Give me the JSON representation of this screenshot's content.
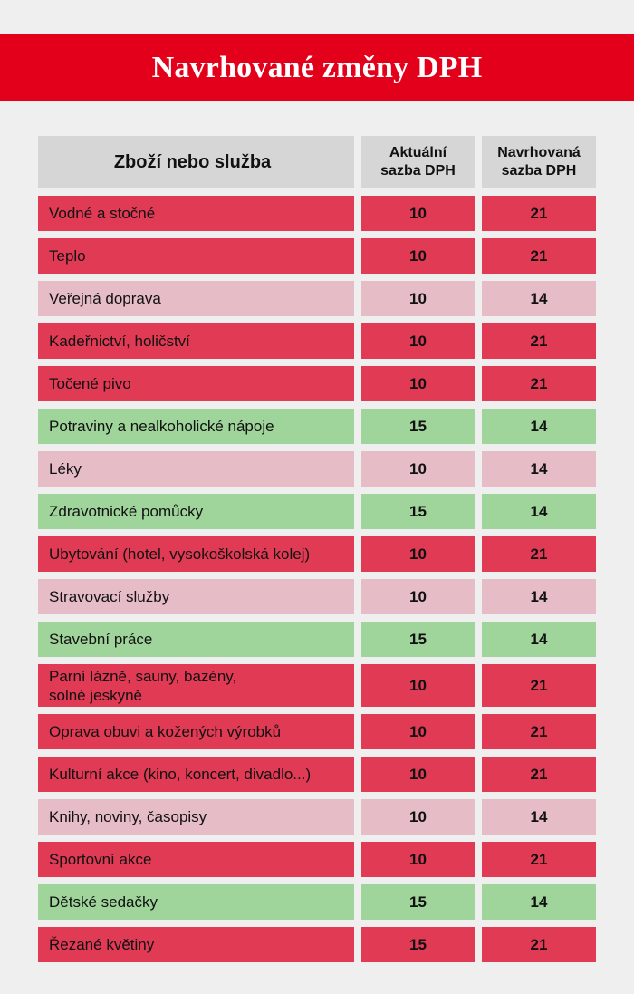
{
  "title": "Navrhované změny DPH",
  "colors": {
    "banner": "#e2001a",
    "header": "#d6d6d6",
    "increase_to_21": "#e03a55",
    "increase_to_14": "#e6bcc6",
    "decrease_to_14": "#9fd49a"
  },
  "chart_data": {
    "type": "table",
    "columns": [
      "Zboží nebo služba",
      "Aktuální\nsazba DPH",
      "Navrhovaná\nsazba DPH"
    ],
    "rows": [
      {
        "item": "Vodné a stočné",
        "current": "10",
        "proposed": "21",
        "color": "#e03a55"
      },
      {
        "item": "Teplo",
        "current": "10",
        "proposed": "21",
        "color": "#e03a55"
      },
      {
        "item": "Veřejná doprava",
        "current": "10",
        "proposed": "14",
        "color": "#e6bcc6"
      },
      {
        "item": "Kadeřnictví, holičství",
        "current": "10",
        "proposed": "21",
        "color": "#e03a55"
      },
      {
        "item": "Točené pivo",
        "current": "10",
        "proposed": "21",
        "color": "#e03a55"
      },
      {
        "item": "Potraviny a nealkoholické nápoje",
        "current": "15",
        "proposed": "14",
        "color": "#9fd49a"
      },
      {
        "item": "Léky",
        "current": "10",
        "proposed": "14",
        "color": "#e6bcc6"
      },
      {
        "item": "Zdravotnické pomůcky",
        "current": "15",
        "proposed": "14",
        "color": "#9fd49a"
      },
      {
        "item": "Ubytování (hotel, vysokoškolská kolej)",
        "current": "10",
        "proposed": "21",
        "color": "#e03a55"
      },
      {
        "item": "Stravovací služby",
        "current": "10",
        "proposed": "14",
        "color": "#e6bcc6"
      },
      {
        "item": "Stavební práce",
        "current": "15",
        "proposed": "14",
        "color": "#9fd49a"
      },
      {
        "item": "Parní lázně, sauny, bazény,\nsolné jeskyně",
        "current": "10",
        "proposed": "21",
        "color": "#e03a55"
      },
      {
        "item": "Oprava obuvi a kožených výrobků",
        "current": "10",
        "proposed": "21",
        "color": "#e03a55"
      },
      {
        "item": "Kulturní akce (kino, koncert, divadlo...)",
        "current": "10",
        "proposed": "21",
        "color": "#e03a55"
      },
      {
        "item": "Knihy, noviny, časopisy",
        "current": "10",
        "proposed": "14",
        "color": "#e6bcc6"
      },
      {
        "item": "Sportovní akce",
        "current": "10",
        "proposed": "21",
        "color": "#e03a55"
      },
      {
        "item": "Dětské sedačky",
        "current": "15",
        "proposed": "14",
        "color": "#9fd49a"
      },
      {
        "item": "Řezané květiny",
        "current": "15",
        "proposed": "21",
        "color": "#e03a55"
      }
    ]
  }
}
